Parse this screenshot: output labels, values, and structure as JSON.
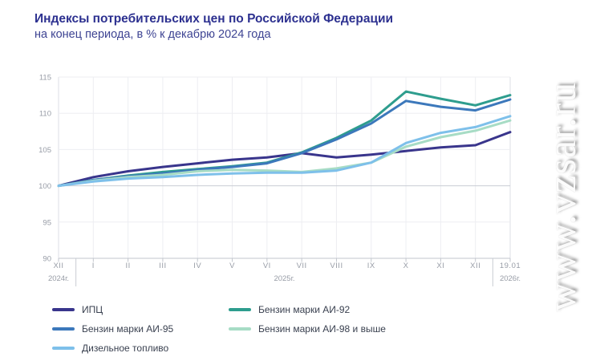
{
  "chart_data": {
    "type": "line",
    "title": "Индексы потребительских цен по Российской Федерации",
    "subtitle": "на конец периода, в % к декабрю 2024 года",
    "categories": [
      "XII",
      "I",
      "II",
      "III",
      "IV",
      "V",
      "VI",
      "VII",
      "VIII",
      "IX",
      "X",
      "XI",
      "XII",
      "19.01"
    ],
    "year_labels": [
      {
        "text": "2024г.",
        "index": 0
      },
      {
        "text": "2025г.",
        "index": 6.5
      },
      {
        "text": "2026г.",
        "index": 13
      }
    ],
    "year_separator_indices": [
      0.5,
      12.5
    ],
    "ylim": [
      90,
      115
    ],
    "yticks": [
      90,
      95,
      100,
      105,
      110,
      115
    ],
    "grid": true,
    "legend_position": "bottom",
    "series": [
      {
        "name": "ИПЦ",
        "color": "#39358c",
        "values": [
          100,
          101.2,
          102.0,
          102.6,
          103.1,
          103.6,
          103.9,
          104.5,
          103.9,
          104.3,
          104.8,
          105.3,
          105.6,
          107.4
        ]
      },
      {
        "name": "Бензин марки АИ-95",
        "color": "#3c78bb",
        "values": [
          100,
          100.8,
          101.3,
          101.7,
          102.2,
          102.6,
          103.1,
          104.5,
          106.4,
          108.6,
          111.7,
          110.9,
          110.4,
          111.9
        ]
      },
      {
        "name": "Дизельное топливо",
        "color": "#7ec0ea",
        "values": [
          100,
          100.6,
          101.0,
          101.2,
          101.5,
          101.7,
          101.8,
          101.8,
          102.1,
          103.2,
          105.9,
          107.3,
          108.1,
          109.6
        ]
      },
      {
        "name": "Бензин марки АИ-92",
        "color": "#2e9d8e",
        "values": [
          100,
          100.8,
          101.4,
          101.9,
          102.3,
          102.7,
          103.2,
          104.6,
          106.6,
          109.0,
          113.0,
          112.0,
          111.1,
          112.5
        ]
      },
      {
        "name": "Бензин марки АИ-98 и выше",
        "color": "#a7dcc5",
        "values": [
          100,
          100.7,
          101.2,
          101.5,
          102.0,
          102.2,
          102.1,
          101.9,
          102.4,
          103.2,
          105.4,
          106.7,
          107.6,
          109.0
        ]
      }
    ],
    "draw_order": [
      0,
      3,
      1,
      4,
      2
    ],
    "legend_columns": [
      [
        0,
        1,
        2
      ],
      [
        3,
        4
      ]
    ]
  },
  "watermark": {
    "text": "www.vzsar.ru"
  },
  "style": {
    "grid_color": "#edeef2",
    "grid_strong_color": "#c9cdd4",
    "axis_color": "#c2c6cd",
    "border_color": "#dcdfe5",
    "tick_label_color": "#979ca6"
  }
}
